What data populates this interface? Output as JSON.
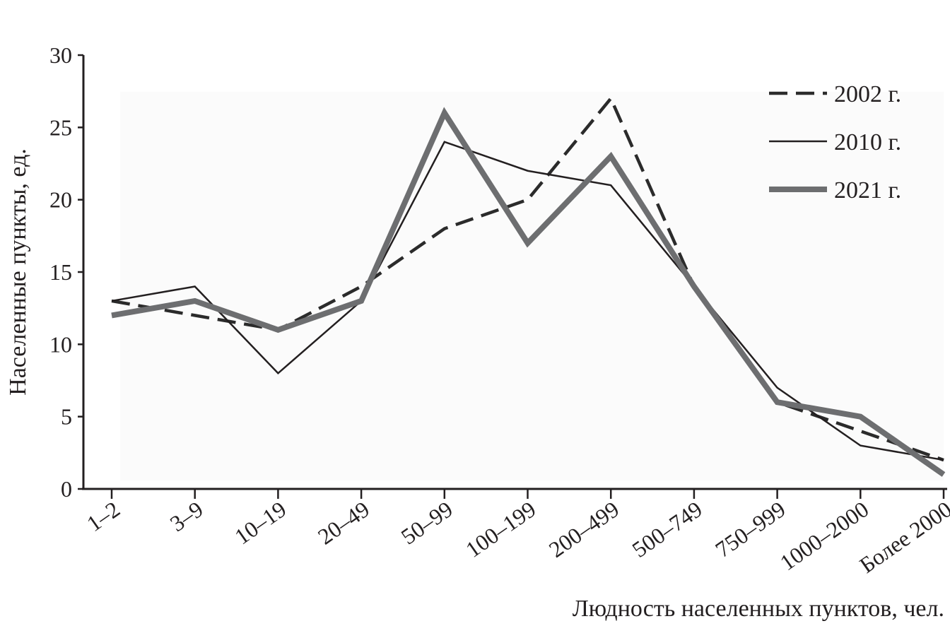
{
  "chart_data": {
    "type": "line",
    "title": "",
    "xlabel": "Людность населенных пунктов, чел.",
    "ylabel": "Населенные пункты, ед.",
    "ylim": [
      0,
      30
    ],
    "yticks": [
      "0",
      "5",
      "10",
      "15",
      "20",
      "25",
      "30"
    ],
    "categories": [
      "1–2",
      "3–9",
      "10–19",
      "20–49",
      "50–99",
      "100–199",
      "200–499",
      "500–749",
      "750–999",
      "1000–2000",
      "Более 2000"
    ],
    "legend_position": "top-right",
    "grid": false,
    "series": [
      {
        "name": "2002 г.",
        "style": "dashed",
        "color": "#2b2b2b",
        "values": [
          13,
          12,
          11,
          14,
          18,
          20,
          27,
          14,
          6,
          4,
          2
        ]
      },
      {
        "name": "2010 г.",
        "style": "thin",
        "color": "#231f20",
        "values": [
          13,
          14,
          8,
          13,
          24,
          22,
          21,
          14,
          7,
          3,
          2
        ]
      },
      {
        "name": "2021 г.",
        "style": "thick",
        "color": "#6d6e70",
        "values": [
          12,
          13,
          11,
          13,
          26,
          17,
          23,
          14,
          6,
          5,
          1
        ]
      }
    ]
  }
}
